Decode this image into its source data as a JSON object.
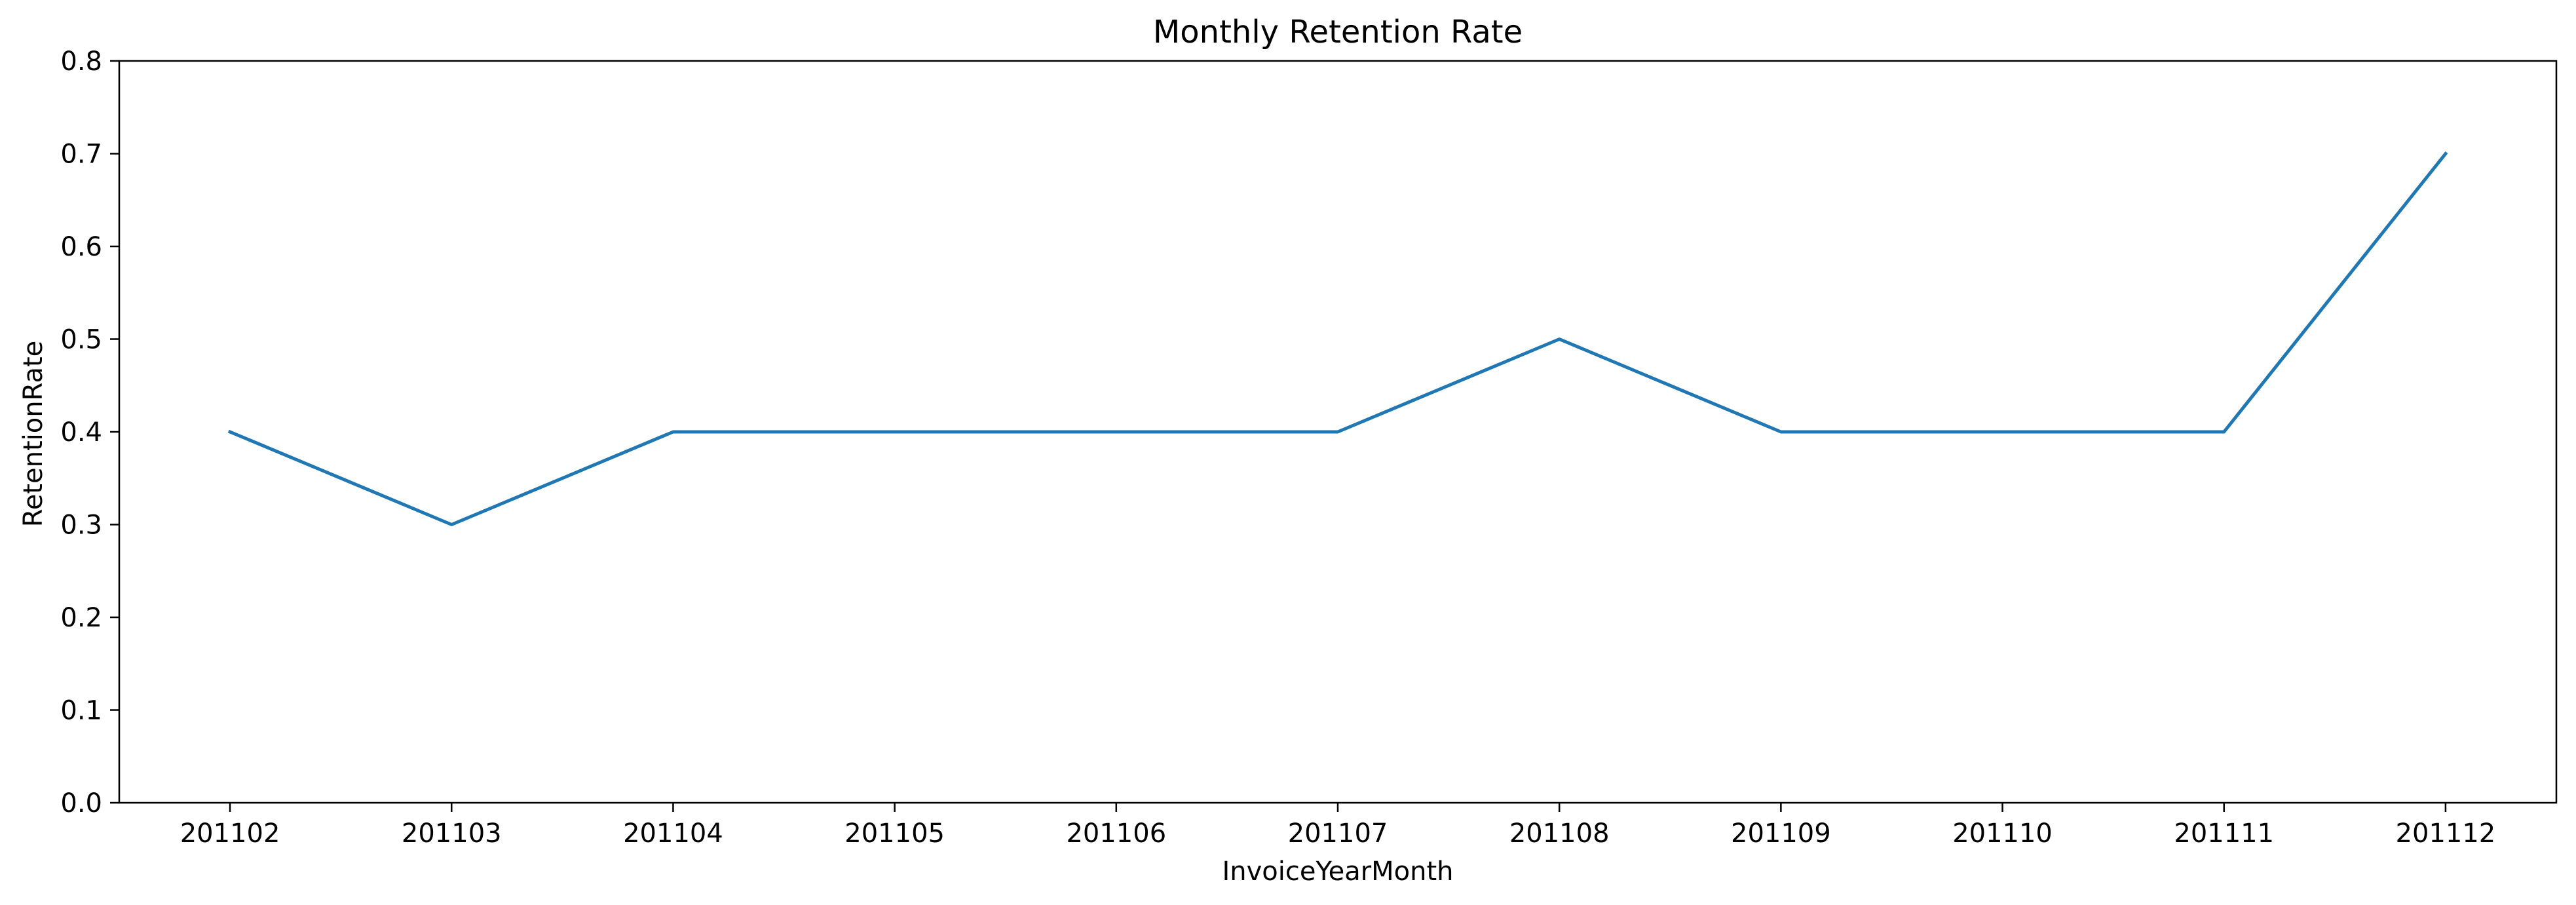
{
  "chart_data": {
    "type": "line",
    "title": "Monthly Retention Rate",
    "xlabel": "InvoiceYearMonth",
    "ylabel": "RetentionRate",
    "categories": [
      "201102",
      "201103",
      "201104",
      "201105",
      "201106",
      "201107",
      "201108",
      "201109",
      "201110",
      "201111",
      "201112"
    ],
    "series": [
      {
        "values": [
          0.4,
          0.3,
          0.4,
          0.4,
          0.4,
          0.4,
          0.5,
          0.4,
          0.4,
          0.4,
          0.7
        ],
        "color": "#1f77b4"
      }
    ],
    "ylim": [
      0.0,
      0.8
    ],
    "yticks": [
      "0.0",
      "0.1",
      "0.2",
      "0.3",
      "0.4",
      "0.5",
      "0.6",
      "0.7",
      "0.8"
    ],
    "grid": false,
    "legend": "none"
  }
}
